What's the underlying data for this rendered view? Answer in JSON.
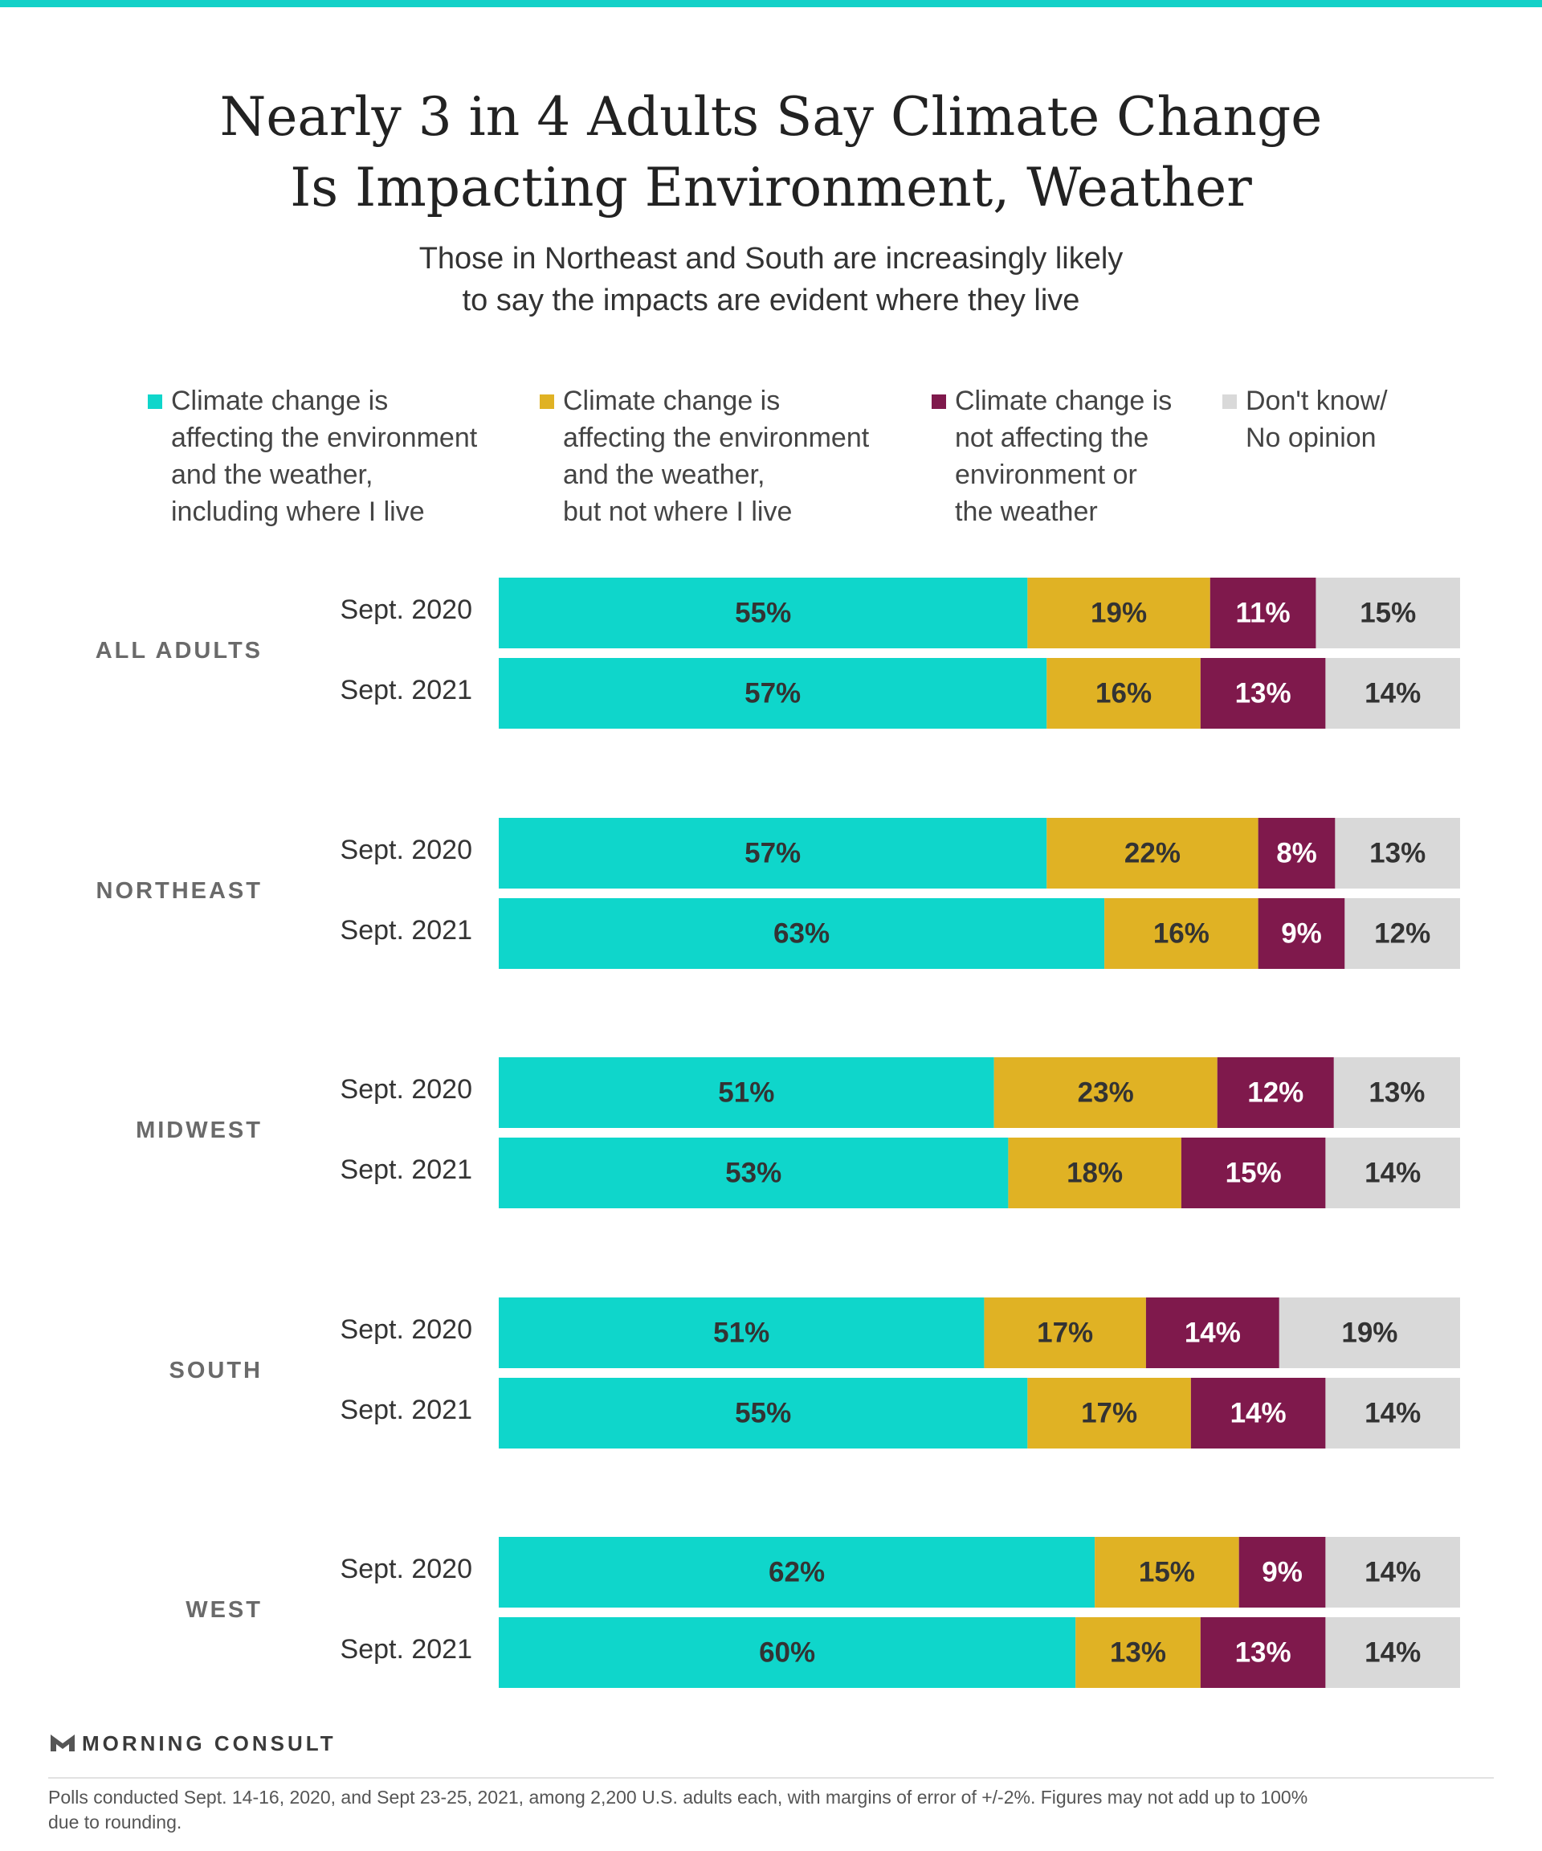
{
  "title": {
    "line1": "Nearly 3 in 4 Adults Say Climate Change",
    "line2": "Is Impacting Environment, Weather"
  },
  "subtitle": {
    "line1": "Those in Northeast and South are increasingly likely",
    "line2": "to say the impacts are evident where they live"
  },
  "colors": {
    "top_rule": "#13d1c8",
    "affecting_including": "#0fd6cb",
    "affecting_not_where": "#e0b224",
    "not_affecting": "#7f194c",
    "dont_know": "#d9d9d9"
  },
  "legend": [
    {
      "lines": [
        "Climate change is",
        "affecting the environment",
        "and the weather,",
        "including where I live"
      ],
      "color": "#0fd6cb"
    },
    {
      "lines": [
        "Climate change is",
        "affecting the environment",
        "and the weather,",
        "but not where I live"
      ],
      "color": "#e0b224"
    },
    {
      "lines": [
        "Climate change is",
        "not affecting the",
        "environment or",
        "the weather"
      ],
      "color": "#7f194c"
    },
    {
      "lines": [
        "Don't know/",
        "No opinion"
      ],
      "color": "#d9d9d9"
    }
  ],
  "chart_data": {
    "type": "bar",
    "orientation": "horizontal",
    "stacked": true,
    "series_names": [
      "Climate change is affecting the environment and the weather, including where I live",
      "Climate change is affecting the environment and the weather, but not where I live",
      "Climate change is not affecting the environment or the weather",
      "Don't know/ No opinion"
    ],
    "groups": [
      {
        "label": "ALL ADULTS",
        "rows": [
          {
            "label": "Sept. 2020",
            "values": [
              55,
              19,
              11,
              15
            ]
          },
          {
            "label": "Sept. 2021",
            "values": [
              57,
              16,
              13,
              14
            ]
          }
        ]
      },
      {
        "label": "NORTHEAST",
        "rows": [
          {
            "label": "Sept. 2020",
            "values": [
              57,
              22,
              8,
              13
            ]
          },
          {
            "label": "Sept. 2021",
            "values": [
              63,
              16,
              9,
              12
            ]
          }
        ]
      },
      {
        "label": "MIDWEST",
        "rows": [
          {
            "label": "Sept. 2020",
            "values": [
              51,
              23,
              12,
              13
            ]
          },
          {
            "label": "Sept. 2021",
            "values": [
              53,
              18,
              15,
              14
            ]
          }
        ]
      },
      {
        "label": "SOUTH",
        "rows": [
          {
            "label": "Sept. 2020",
            "values": [
              51,
              17,
              14,
              19
            ]
          },
          {
            "label": "Sept. 2021",
            "values": [
              55,
              17,
              14,
              14
            ]
          }
        ]
      },
      {
        "label": "WEST",
        "rows": [
          {
            "label": "Sept. 2020",
            "values": [
              62,
              15,
              9,
              14
            ]
          },
          {
            "label": "Sept. 2021",
            "values": [
              60,
              13,
              13,
              14
            ]
          }
        ]
      }
    ],
    "value_suffix": "%"
  },
  "logo": "MORNING CONSULT",
  "note": {
    "line1": "Polls conducted Sept. 14-16, 2020, and Sept 23-25, 2021, among 2,200 U.S. adults each, with margins of error of +/-2%. Figures may not add up to 100%",
    "line2": "due to rounding."
  }
}
